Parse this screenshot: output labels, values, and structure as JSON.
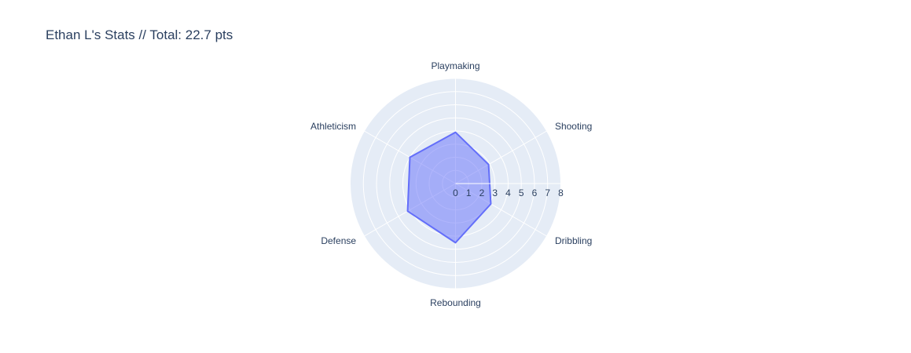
{
  "chart_data": {
    "type": "radar",
    "title": "Ethan L's Stats // Total: 22.7 pts",
    "categories": [
      "Playmaking",
      "Shooting",
      "Dribbling",
      "Rebounding",
      "Defense",
      "Athleticism"
    ],
    "values": [
      3.9,
      2.9,
      3.1,
      4.5,
      4.2,
      4.0
    ],
    "radial_range": [
      0,
      8
    ],
    "radial_ticks": [
      0,
      1,
      2,
      3,
      4,
      5,
      6,
      7,
      8
    ],
    "grid": true,
    "colors": {
      "fill": "#636efa",
      "line": "#636efa",
      "background": "#e5ecf6",
      "grid": "#ffffff",
      "text": "#2a3f5f"
    }
  }
}
